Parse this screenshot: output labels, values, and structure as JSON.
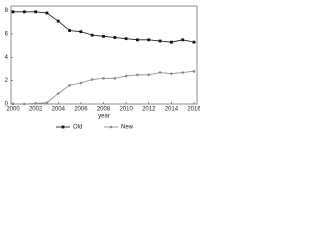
{
  "chart_data": {
    "type": "line",
    "x_label": "year",
    "x": [
      2000,
      2001,
      2002,
      2003,
      2004,
      2005,
      2006,
      2007,
      2008,
      2009,
      2010,
      2011,
      2012,
      2013,
      2014,
      2015,
      2016
    ],
    "series": [
      {
        "name": "Old",
        "color": "#111111",
        "marker": "square",
        "values": [
          7.9,
          7.9,
          7.9,
          7.8,
          7.1,
          6.3,
          6.2,
          5.9,
          5.8,
          5.7,
          5.6,
          5.5,
          5.5,
          5.4,
          5.3,
          5.5,
          5.3
        ]
      },
      {
        "name": "New",
        "color": "#888888",
        "marker": "circle",
        "values": [
          0,
          0,
          0.05,
          0.1,
          0.9,
          1.6,
          1.8,
          2.1,
          2.2,
          2.2,
          2.4,
          2.5,
          2.5,
          2.7,
          2.6,
          2.7,
          2.8
        ]
      }
    ],
    "xlim": [
      2000,
      2016
    ],
    "xticks": [
      2000,
      2002,
      2004,
      2006,
      2008,
      2010,
      2012,
      2014,
      2016
    ],
    "ylim": [
      0,
      8.4
    ],
    "yticks": [
      0,
      2,
      4,
      6,
      8
    ],
    "grid": false,
    "legend": "bottom"
  }
}
